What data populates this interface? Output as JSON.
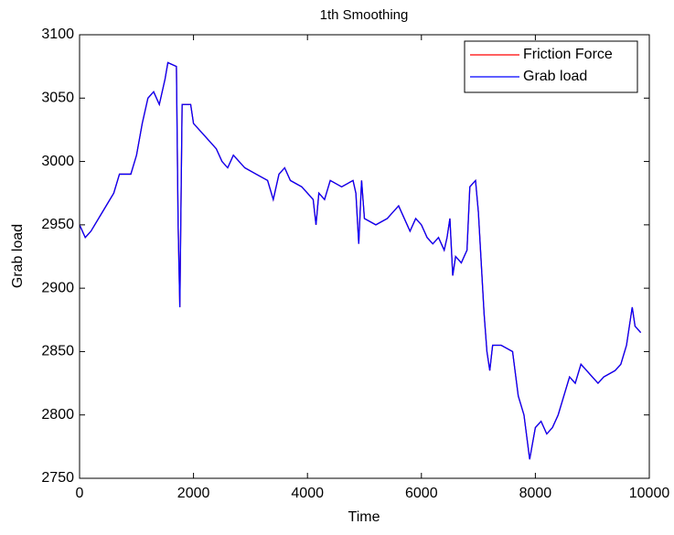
{
  "chart_data": {
    "type": "line",
    "title": "1th Smoothing",
    "x_label": "Time",
    "y_label": "Grab load",
    "x": [
      0,
      100,
      200,
      400,
      600,
      700,
      900,
      1000,
      1100,
      1200,
      1300,
      1400,
      1500,
      1550,
      1700,
      1730,
      1760,
      1800,
      1950,
      2000,
      2200,
      2400,
      2500,
      2600,
      2700,
      2900,
      3100,
      3300,
      3400,
      3500,
      3600,
      3700,
      3900,
      4000,
      4100,
      4150,
      4200,
      4300,
      4400,
      4600,
      4800,
      4850,
      4900,
      4950,
      5000,
      5200,
      5400,
      5500,
      5600,
      5700,
      5800,
      5900,
      6000,
      6100,
      6200,
      6300,
      6400,
      6450,
      6500,
      6550,
      6600,
      6700,
      6800,
      6850,
      6950,
      7000,
      7100,
      7150,
      7200,
      7250,
      7400,
      7600,
      7700,
      7800,
      7900,
      8000,
      8100,
      8200,
      8300,
      8400,
      8500,
      8600,
      8700,
      8800,
      8900,
      9000,
      9100,
      9200,
      9400,
      9500,
      9600,
      9700,
      9750,
      9850
    ],
    "series": [
      {
        "name": "Friction Force",
        "color": "#ff0000",
        "values": [
          2950,
          2940,
          2945,
          2960,
          2975,
          2990,
          2990,
          3005,
          3030,
          3050,
          3055,
          3045,
          3065,
          3078,
          3075,
          2950,
          2885,
          3045,
          3045,
          3030,
          3020,
          3010,
          3000,
          2995,
          3005,
          2995,
          2990,
          2985,
          2970,
          2990,
          2995,
          2985,
          2980,
          2975,
          2970,
          2950,
          2975,
          2970,
          2985,
          2980,
          2985,
          2975,
          2935,
          2985,
          2955,
          2950,
          2955,
          2960,
          2965,
          2955,
          2945,
          2955,
          2950,
          2940,
          2935,
          2940,
          2930,
          2940,
          2955,
          2910,
          2925,
          2920,
          2930,
          2980,
          2985,
          2960,
          2880,
          2850,
          2835,
          2855,
          2855,
          2850,
          2815,
          2800,
          2765,
          2790,
          2795,
          2785,
          2790,
          2800,
          2815,
          2830,
          2825,
          2840,
          2835,
          2830,
          2825,
          2830,
          2835,
          2840,
          2855,
          2885,
          2870,
          2865
        ]
      },
      {
        "name": "Grab load",
        "color": "#0000ff",
        "values": [
          2950,
          2940,
          2945,
          2960,
          2975,
          2990,
          2990,
          3005,
          3030,
          3050,
          3055,
          3045,
          3065,
          3078,
          3075,
          2950,
          2885,
          3045,
          3045,
          3030,
          3020,
          3010,
          3000,
          2995,
          3005,
          2995,
          2990,
          2985,
          2970,
          2990,
          2995,
          2985,
          2980,
          2975,
          2970,
          2950,
          2975,
          2970,
          2985,
          2980,
          2985,
          2975,
          2935,
          2985,
          2955,
          2950,
          2955,
          2960,
          2965,
          2955,
          2945,
          2955,
          2950,
          2940,
          2935,
          2940,
          2930,
          2940,
          2955,
          2910,
          2925,
          2920,
          2930,
          2980,
          2985,
          2960,
          2880,
          2850,
          2835,
          2855,
          2855,
          2850,
          2815,
          2800,
          2765,
          2790,
          2795,
          2785,
          2790,
          2800,
          2815,
          2830,
          2825,
          2840,
          2835,
          2830,
          2825,
          2830,
          2835,
          2840,
          2855,
          2885,
          2870,
          2865
        ]
      }
    ],
    "xlim": [
      0,
      10000
    ],
    "xticks": [
      0,
      2000,
      4000,
      6000,
      8000,
      10000
    ],
    "ylim": [
      2750,
      3100
    ],
    "yticks": [
      2750,
      2800,
      2850,
      2900,
      2950,
      3000,
      3050,
      3100
    ],
    "grid": false,
    "legend": "top-right"
  }
}
